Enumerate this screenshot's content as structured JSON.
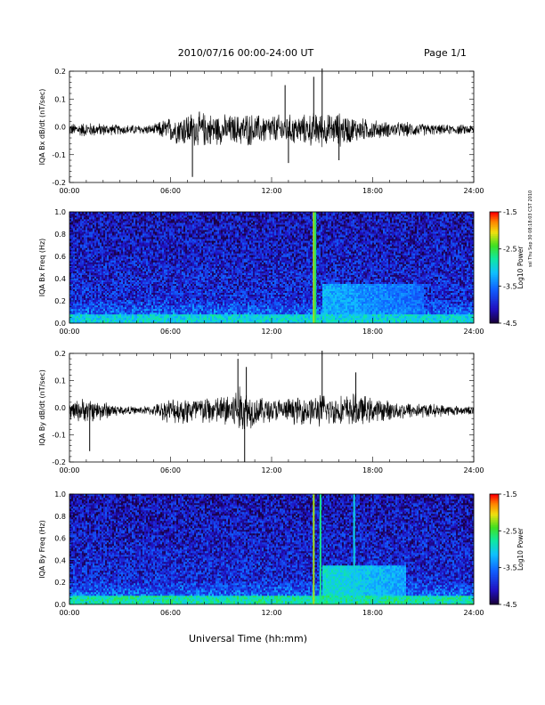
{
  "header": {
    "title": "2010/07/16  00:00-24:00 UT",
    "page": "Page 1/1",
    "xlabel": "Universal Time (hh:mm)",
    "side_note": "ssl Thu Sep 30 08:18:03 CST 2010"
  },
  "colors": {
    "trace": "#000000",
    "axis": "#000000",
    "background": "#ffffff"
  },
  "chart_data": [
    {
      "type": "line",
      "ylabel": "IQA Bx dB/dt (nT/sec)",
      "xlim": [
        0,
        24
      ],
      "ylim": [
        -0.2,
        0.2
      ],
      "xticks": [
        "00:00",
        "06:00",
        "12:00",
        "18:00",
        "24:00"
      ],
      "yticks": [
        "-0.2",
        "-0.1",
        "0.0",
        "0.1",
        "0.2"
      ],
      "envelope": {
        "hours": [
          0,
          1,
          2,
          3,
          4,
          5,
          5.5,
          6,
          7,
          8,
          9,
          10,
          10.5,
          11,
          12,
          13,
          14,
          14.5,
          15,
          15.5,
          16,
          17,
          18,
          19,
          20,
          21,
          22,
          23,
          24
        ],
        "amp": [
          0.025,
          0.03,
          0.025,
          0.02,
          0.02,
          0.02,
          0.04,
          0.05,
          0.07,
          0.07,
          0.06,
          0.06,
          0.07,
          0.06,
          0.06,
          0.06,
          0.06,
          0.07,
          0.07,
          0.06,
          0.07,
          0.05,
          0.04,
          0.03,
          0.03,
          0.025,
          0.02,
          0.02,
          0.02
        ]
      },
      "spikes": [
        {
          "hour": 7.3,
          "value": -0.18
        },
        {
          "hour": 12.8,
          "value": 0.15
        },
        {
          "hour": 13.0,
          "value": -0.13
        },
        {
          "hour": 14.5,
          "value": 0.18
        },
        {
          "hour": 15.0,
          "value": 0.21
        },
        {
          "hour": 16.0,
          "value": -0.12
        }
      ]
    },
    {
      "type": "heatmap",
      "ylabel": "IQA Bx Freq (Hz)",
      "xlim": [
        0,
        24
      ],
      "ylim": [
        0,
        1.0
      ],
      "xticks": [
        "00:00",
        "06:00",
        "12:00",
        "18:00",
        "24:00"
      ],
      "yticks": [
        "0.0",
        "0.2",
        "0.4",
        "0.6",
        "0.8",
        "1.0"
      ],
      "colorbar": {
        "label": "Log10 Power",
        "range": [
          -4.5,
          -1.5
        ],
        "ticks": [
          "-1.5",
          "-2.5",
          "-3.5",
          "-4.5"
        ]
      },
      "features": {
        "vertical_lines": [
          {
            "hour": 14.5,
            "power": -2.2
          },
          {
            "hour": 14.6,
            "power": -2.6
          }
        ],
        "band": {
          "start": 15.0,
          "end": 21.0,
          "freq_top": 0.35,
          "power": -3.2
        },
        "low_freq_power": -3.0
      }
    },
    {
      "type": "line",
      "ylabel": "IQA By dB/dt (nT/sec)",
      "xlim": [
        0,
        24
      ],
      "ylim": [
        -0.2,
        0.2
      ],
      "xticks": [
        "00:00",
        "06:00",
        "12:00",
        "18:00",
        "24:00"
      ],
      "yticks": [
        "-0.2",
        "-0.1",
        "0.0",
        "0.1",
        "0.2"
      ],
      "envelope": {
        "hours": [
          0,
          1,
          2,
          3,
          4,
          5,
          5.5,
          6,
          7,
          8,
          9,
          10,
          10.5,
          11,
          12,
          13,
          14,
          14.5,
          15,
          15.5,
          16,
          17,
          18,
          19,
          20,
          21,
          22,
          23,
          24
        ],
        "amp": [
          0.04,
          0.05,
          0.04,
          0.02,
          0.015,
          0.02,
          0.04,
          0.05,
          0.06,
          0.06,
          0.06,
          0.1,
          0.09,
          0.06,
          0.05,
          0.05,
          0.06,
          0.06,
          0.07,
          0.06,
          0.06,
          0.07,
          0.05,
          0.04,
          0.035,
          0.03,
          0.025,
          0.02,
          0.015
        ]
      },
      "spikes": [
        {
          "hour": 1.2,
          "value": -0.16
        },
        {
          "hour": 10.0,
          "value": 0.18
        },
        {
          "hour": 10.4,
          "value": -0.2
        },
        {
          "hour": 10.5,
          "value": 0.15
        },
        {
          "hour": 15.0,
          "value": 0.21
        },
        {
          "hour": 17.0,
          "value": 0.13
        }
      ]
    },
    {
      "type": "heatmap",
      "ylabel": "IQA By Freq (Hz)",
      "xlim": [
        0,
        24
      ],
      "ylim": [
        0,
        1.0
      ],
      "xticks": [
        "00:00",
        "06:00",
        "12:00",
        "18:00",
        "24:00"
      ],
      "yticks": [
        "0.0",
        "0.2",
        "0.4",
        "0.6",
        "0.8",
        "1.0"
      ],
      "colorbar": {
        "label": "Log10 Power",
        "range": [
          -4.5,
          -1.5
        ],
        "ticks": [
          "-1.5",
          "-2.5",
          "-3.5",
          "-4.5"
        ]
      },
      "features": {
        "vertical_lines": [
          {
            "hour": 14.5,
            "power": -2.2
          },
          {
            "hour": 14.9,
            "power": -2.7
          },
          {
            "hour": 16.9,
            "power": -3.0
          }
        ],
        "band": {
          "start": 15.0,
          "end": 20.0,
          "freq_top": 0.36,
          "power": -2.9
        },
        "low_freq_power": -2.8
      }
    }
  ]
}
